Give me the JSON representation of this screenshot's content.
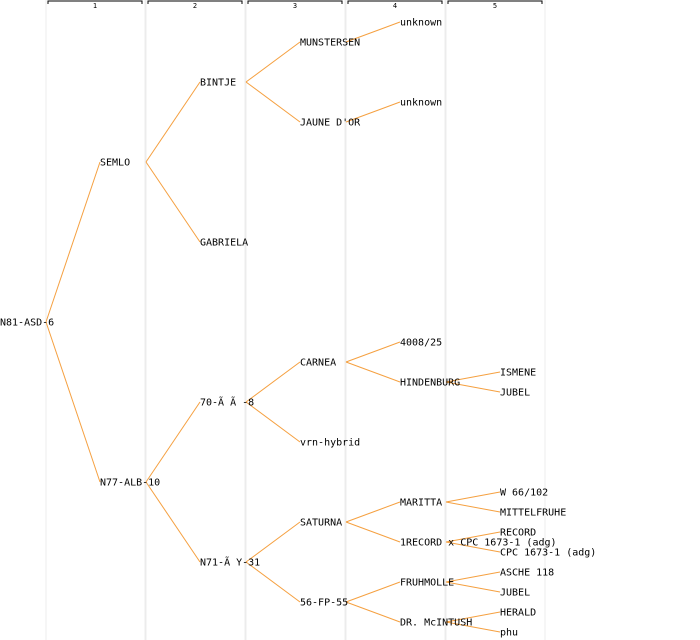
{
  "colors": {
    "edge": "#f5a040",
    "column_line": "#ececec",
    "text": "#000000"
  },
  "generations": [
    "1",
    "2",
    "3",
    "4",
    "5"
  ],
  "tree": {
    "label": "N81-ASD-6",
    "children": [
      {
        "label": "SEMLO",
        "children": [
          {
            "label": "BINTJE",
            "children": [
              {
                "label": "MUNSTERSEN",
                "children": [
                  {
                    "label": "unknown"
                  }
                ]
              },
              {
                "label": "JAUNE D'OR",
                "children": [
                  {
                    "label": "unknown"
                  }
                ]
              }
            ]
          },
          {
            "label": "GABRIELA"
          }
        ]
      },
      {
        "label": "N77-ALB-10",
        "children": [
          {
            "label": "70-Ã Ã -8",
            "children": [
              {
                "label": "CARNEA",
                "children": [
                  {
                    "label": "4008/25"
                  },
                  {
                    "label": "HINDENBURG",
                    "children": [
                      {
                        "label": "ISMENE"
                      },
                      {
                        "label": "JUBEL"
                      }
                    ]
                  }
                ]
              },
              {
                "label": "vrn-hybrid"
              }
            ]
          },
          {
            "label": "N71-Ã Y-31",
            "children": [
              {
                "label": "SATURNA",
                "children": [
                  {
                    "label": "MARITTA",
                    "children": [
                      {
                        "label": "W 66/102"
                      },
                      {
                        "label": "MITTELFRUHE"
                      }
                    ]
                  },
                  {
                    "label": "1RECORD x CPC 1673-1 (adg)",
                    "children": [
                      {
                        "label": "RECORD"
                      },
                      {
                        "label": "CPC 1673-1 (adg)"
                      }
                    ]
                  }
                ]
              },
              {
                "label": "56-FP-55",
                "children": [
                  {
                    "label": "FRUHMOLLE",
                    "children": [
                      {
                        "label": "ASCHE 118"
                      },
                      {
                        "label": "JUBEL"
                      }
                    ]
                  },
                  {
                    "label": "DR. McINTUSH",
                    "children": [
                      {
                        "label": "HERALD"
                      },
                      {
                        "label": "phu"
                      }
                    ]
                  }
                ]
              }
            ]
          }
        ]
      }
    ]
  }
}
